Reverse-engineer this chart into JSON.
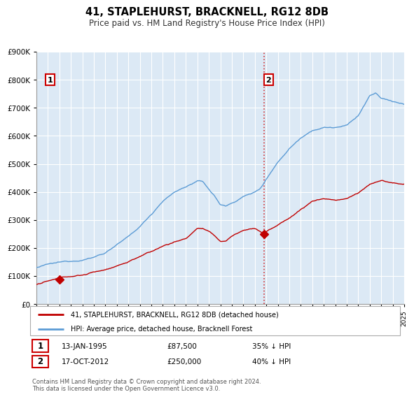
{
  "title": "41, STAPLEHURST, BRACKNELL, RG12 8DB",
  "subtitle": "Price paid vs. HM Land Registry's House Price Index (HPI)",
  "ylim": [
    0,
    900000
  ],
  "yticks": [
    0,
    100000,
    200000,
    300000,
    400000,
    500000,
    600000,
    700000,
    800000,
    900000
  ],
  "ytick_labels": [
    "£0",
    "£100K",
    "£200K",
    "£300K",
    "£400K",
    "£500K",
    "£600K",
    "£700K",
    "£800K",
    "£900K"
  ],
  "hpi_color": "#5b9bd5",
  "price_color": "#c00000",
  "sale1_date": "13-JAN-1995",
  "sale1_price": 87500,
  "sale1_label": "35% ↓ HPI",
  "sale1_year": 1995.04,
  "sale2_date": "17-OCT-2012",
  "sale2_price": 250000,
  "sale2_label": "40% ↓ HPI",
  "sale2_year": 2012.79,
  "legend_line1": "41, STAPLEHURST, BRACKNELL, RG12 8DB (detached house)",
  "legend_line2": "HPI: Average price, detached house, Bracknell Forest",
  "footer": "Contains HM Land Registry data © Crown copyright and database right 2024.\nThis data is licensed under the Open Government Licence v3.0.",
  "chart_bg": "#dce9f5",
  "hatch_bg": "#e8e8e8",
  "grid_color": "#ffffff",
  "vline_color": "#cc0000",
  "marker_box_color": "#cc0000",
  "xlim_start": 1993,
  "xlim_end": 2025
}
